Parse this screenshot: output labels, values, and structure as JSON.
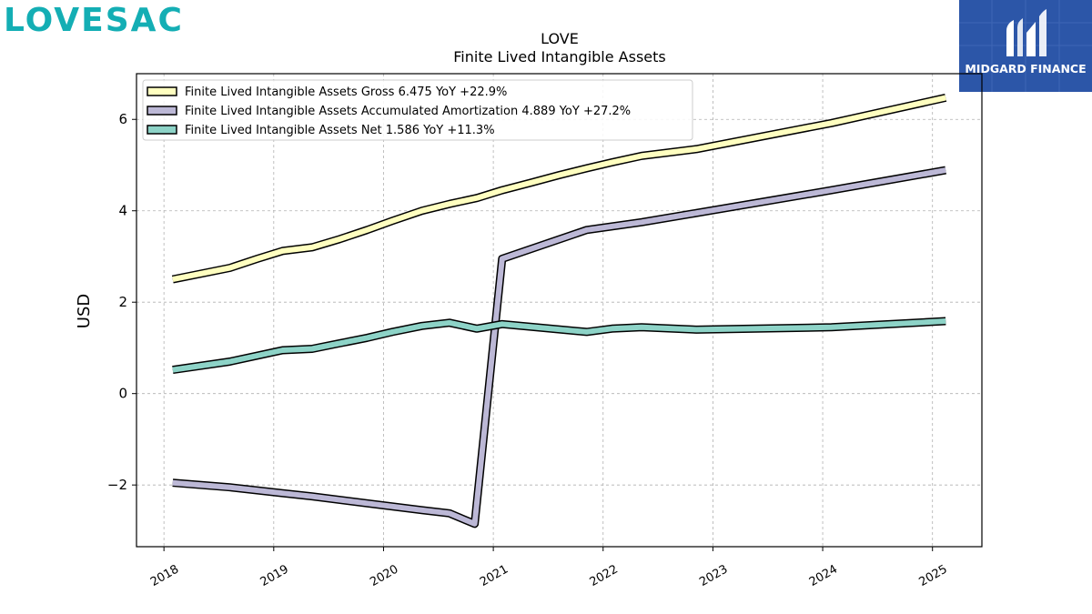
{
  "brand": {
    "left_logo": "LOVESAC",
    "right_logo": "MIDGARD FINANCE",
    "left_color": "#14aeb4",
    "right_bg": "#2c56a8"
  },
  "chart_data": {
    "type": "line",
    "title": "LOVE",
    "subtitle": "Finite Lived Intangible Assets",
    "xlabel": "",
    "ylabel": "USD",
    "xlim": [
      2017.75,
      2025.45
    ],
    "ylim": [
      -3.35,
      7.0
    ],
    "x_ticks": [
      2018,
      2019,
      2020,
      2021,
      2022,
      2023,
      2024,
      2025
    ],
    "y_ticks": [
      -2,
      0,
      2,
      4,
      6
    ],
    "y_tick_labels": [
      "−2",
      "0",
      "2",
      "4",
      "6"
    ],
    "grid": true,
    "legend_position": "top-left",
    "series": [
      {
        "name": "Finite Lived Intangible Assets Gross  6.475 YoY +22.9%",
        "color": "#ffffc0",
        "x": [
          2018.08,
          2018.6,
          2018.85,
          2019.08,
          2019.35,
          2019.6,
          2019.85,
          2020.08,
          2020.35,
          2020.6,
          2020.85,
          2021.08,
          2021.35,
          2021.6,
          2021.85,
          2022.08,
          2022.35,
          2022.85,
          2024.08,
          2025.12
        ],
        "y": [
          2.5,
          2.75,
          2.95,
          3.12,
          3.2,
          3.38,
          3.58,
          3.78,
          4.0,
          4.15,
          4.28,
          4.45,
          4.62,
          4.78,
          4.93,
          5.06,
          5.2,
          5.35,
          5.92,
          6.475
        ]
      },
      {
        "name": "Finite Lived Intangible Assets Accumulated Amortization  4.889 YoY +27.2%",
        "color": "#bcb8d6",
        "x": [
          2018.08,
          2018.6,
          2019.08,
          2019.35,
          2019.85,
          2020.35,
          2020.6,
          2020.83,
          2021.08,
          2021.85,
          2022.35,
          2022.85,
          2024.08,
          2025.12
        ],
        "y": [
          -1.95,
          -2.05,
          -2.18,
          -2.25,
          -2.4,
          -2.55,
          -2.62,
          -2.85,
          2.95,
          3.58,
          3.75,
          3.95,
          4.45,
          4.889
        ]
      },
      {
        "name": "Finite Lived Intangible Assets Net  1.586 YoY +11.3%",
        "color": "#8dd3c7",
        "x": [
          2018.08,
          2018.6,
          2018.85,
          2019.08,
          2019.35,
          2019.6,
          2019.85,
          2020.08,
          2020.35,
          2020.6,
          2020.85,
          2021.08,
          2021.85,
          2022.08,
          2022.35,
          2022.85,
          2024.08,
          2025.12
        ],
        "y": [
          0.52,
          0.7,
          0.83,
          0.95,
          0.98,
          1.1,
          1.22,
          1.35,
          1.48,
          1.55,
          1.42,
          1.52,
          1.35,
          1.42,
          1.45,
          1.4,
          1.45,
          1.586
        ]
      }
    ]
  }
}
